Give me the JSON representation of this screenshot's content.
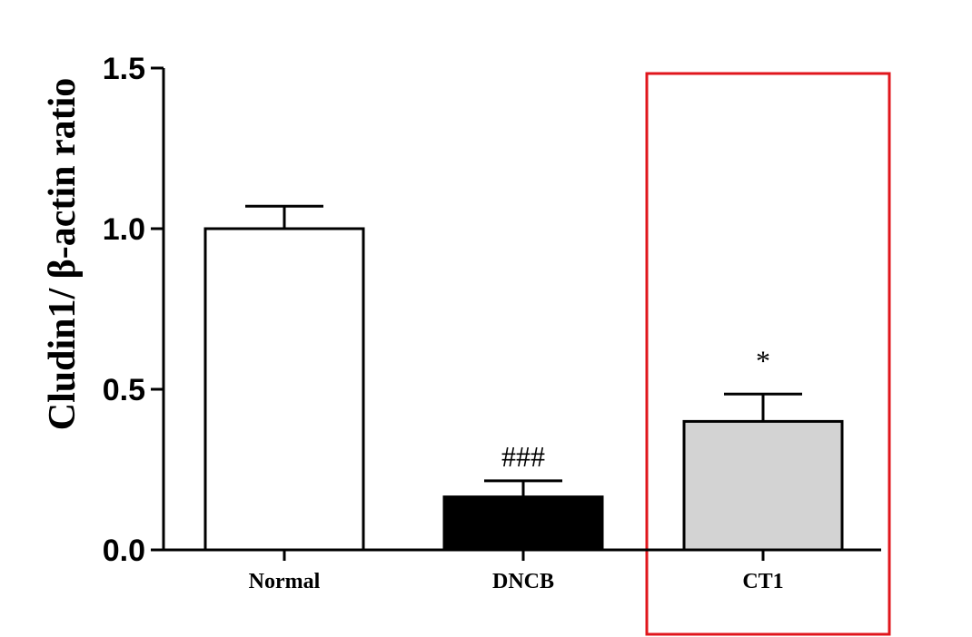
{
  "chart_data": {
    "type": "bar",
    "title": "",
    "xlabel": "",
    "ylabel": "Cludin1/ β-actin ratio",
    "ylim": [
      0,
      1.5
    ],
    "yticks": [
      "0.0",
      "0.5",
      "1.0",
      "1.5"
    ],
    "ytick_values": [
      0,
      0.5,
      1.0,
      1.5
    ],
    "categories": [
      "Normal",
      "DNCB",
      "CT1"
    ],
    "values": [
      1.0,
      0.165,
      0.4
    ],
    "errors": [
      0.07,
      0.05,
      0.085
    ],
    "annotations": [
      "",
      "###",
      "*"
    ],
    "bar_colors": [
      "#ffffff",
      "#000000",
      "#d3d3d3"
    ],
    "highlight": {
      "category": "CT1",
      "color": "#e0161c"
    },
    "grid": false,
    "legend": "none"
  }
}
